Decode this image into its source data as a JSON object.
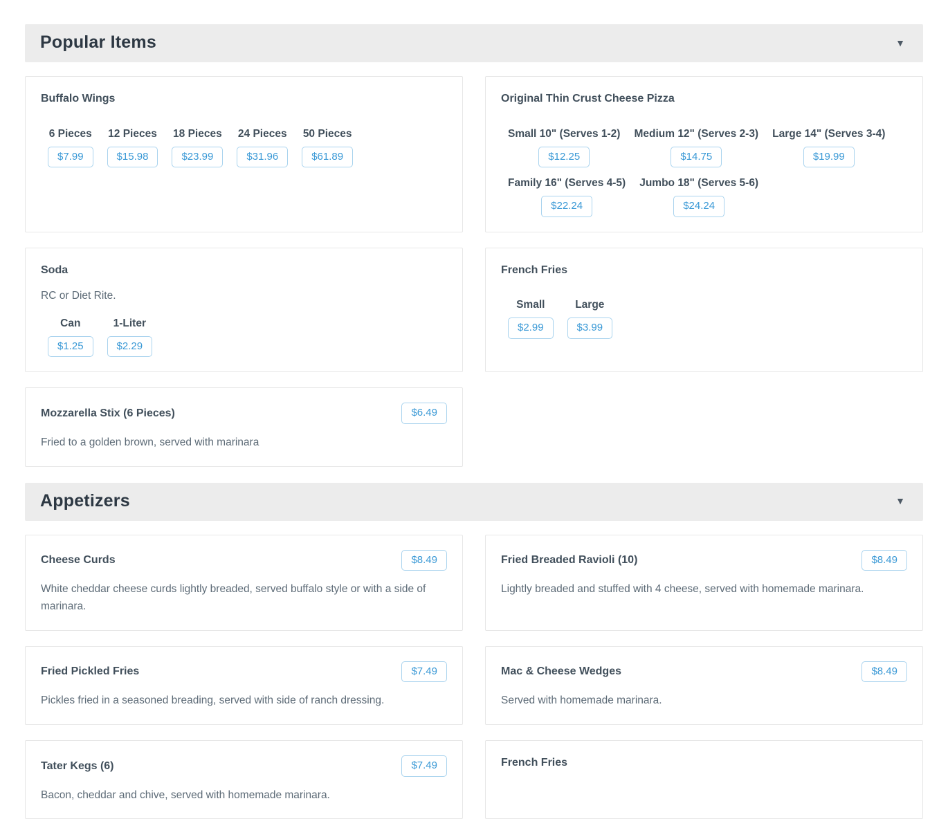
{
  "ui": {
    "collapse_glyph": "▼",
    "accent_color": "#3a99d6",
    "button_border_color": "#a9d3ee",
    "section_header_bg": "#ececec"
  },
  "sections": [
    {
      "title": "Popular Items",
      "items": [
        {
          "name": "Buffalo Wings",
          "sizes": [
            {
              "label": "6 Pieces",
              "price": "$7.99"
            },
            {
              "label": "12 Pieces",
              "price": "$15.98"
            },
            {
              "label": "18 Pieces",
              "price": "$23.99"
            },
            {
              "label": "24 Pieces",
              "price": "$31.96"
            },
            {
              "label": "50 Pieces",
              "price": "$61.89"
            }
          ]
        },
        {
          "name": "Original Thin Crust Cheese Pizza",
          "sizes": [
            {
              "label": "Small 10\" (Serves 1-2)",
              "price": "$12.25"
            },
            {
              "label": "Medium 12\" (Serves 2-3)",
              "price": "$14.75"
            },
            {
              "label": "Large 14\" (Serves 3-4)",
              "price": "$19.99"
            },
            {
              "label": "Family 16\" (Serves 4-5)",
              "price": "$22.24"
            },
            {
              "label": "Jumbo 18\" (Serves 5-6)",
              "price": "$24.24"
            }
          ]
        },
        {
          "name": "Soda",
          "description": "RC or Diet Rite.",
          "sizes": [
            {
              "label": "Can",
              "price": "$1.25"
            },
            {
              "label": "1-Liter",
              "price": "$2.29"
            }
          ]
        },
        {
          "name": "French Fries",
          "sizes": [
            {
              "label": "Small",
              "price": "$2.99"
            },
            {
              "label": "Large",
              "price": "$3.99"
            }
          ]
        },
        {
          "name": "Mozzarella Stix (6 Pieces)",
          "price": "$6.49",
          "description": "Fried to a golden brown, served with marinara"
        }
      ]
    },
    {
      "title": "Appetizers",
      "items": [
        {
          "name": "Cheese Curds",
          "price": "$8.49",
          "description": "White cheddar cheese curds lightly breaded, served buffalo style or with a side of marinara."
        },
        {
          "name": "Fried Breaded Ravioli (10)",
          "price": "$8.49",
          "description": "Lightly breaded and stuffed with 4 cheese, served with homemade marinara."
        },
        {
          "name": "Fried Pickled Fries",
          "price": "$7.49",
          "description": "Pickles fried in a seasoned breading, served with side of ranch dressing."
        },
        {
          "name": "Mac & Cheese Wedges",
          "price": "$8.49",
          "description": "Served with homemade marinara."
        },
        {
          "name": "Tater Kegs (6)",
          "price": "$7.49",
          "description": "Bacon, cheddar and chive, served with homemade marinara."
        },
        {
          "name": "French Fries"
        }
      ]
    }
  ]
}
